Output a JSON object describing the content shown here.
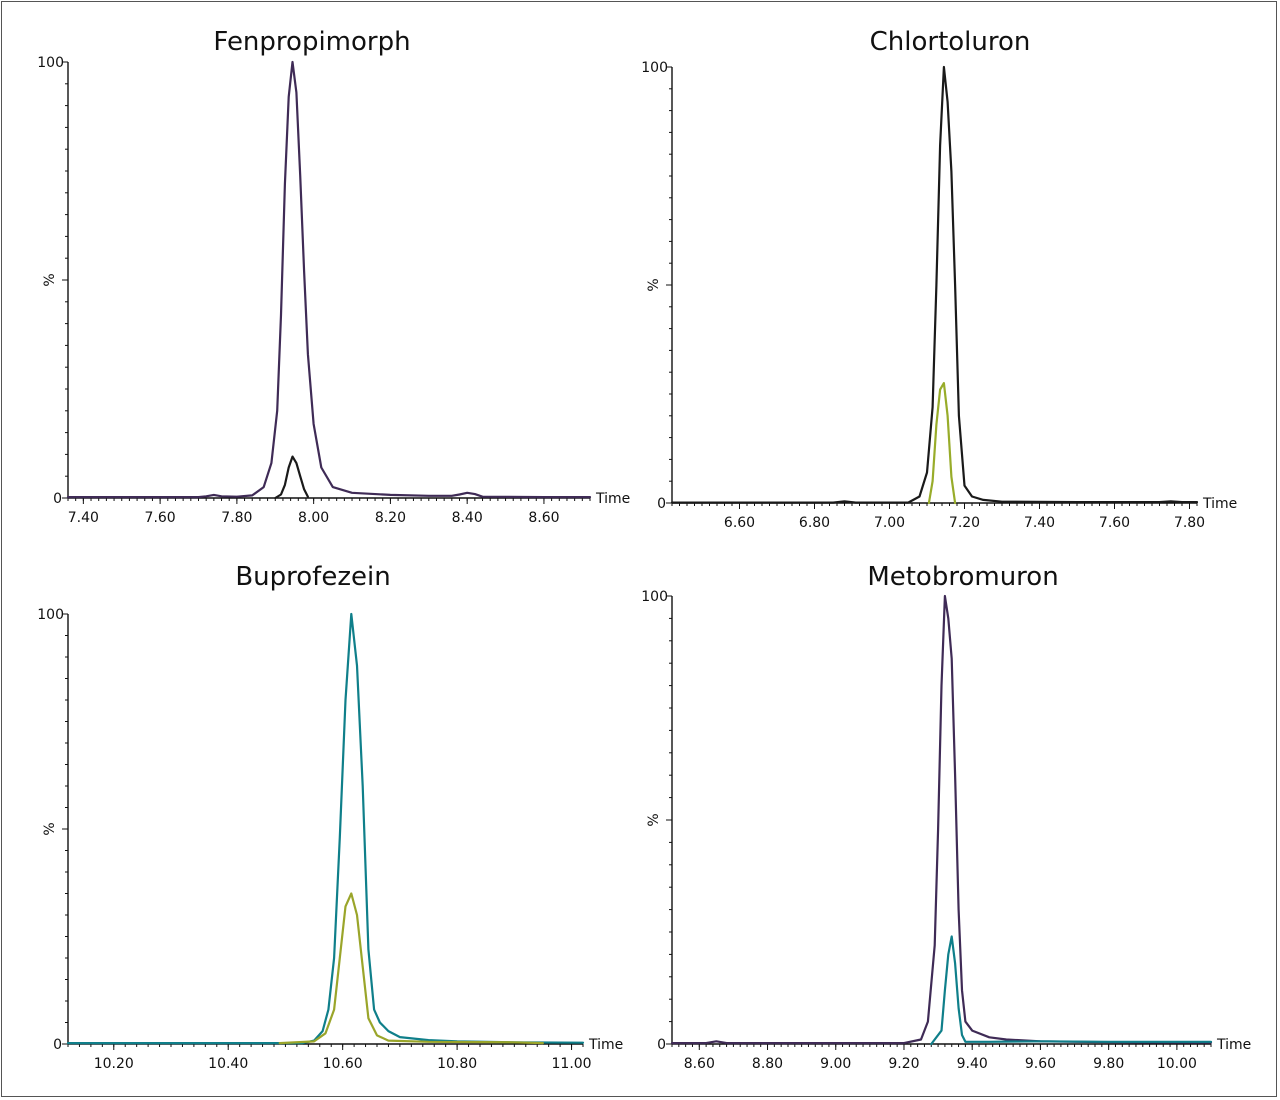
{
  "chart_data": [
    {
      "type": "line",
      "title": "Fenpropimorph",
      "ylabel": "%",
      "xlabel": "Time",
      "xlim": [
        7.36,
        8.72
      ],
      "ylim": [
        0,
        100
      ],
      "xticks": [
        "7.40",
        "7.60",
        "7.80",
        "8.00",
        "8.20",
        "8.40",
        "8.60"
      ],
      "yticks": [
        "0",
        "100"
      ],
      "series": [
        {
          "color": "#3f2b56",
          "x": [
            7.36,
            7.7,
            7.72,
            7.74,
            7.76,
            7.8,
            7.84,
            7.87,
            7.89,
            7.905,
            7.915,
            7.925,
            7.935,
            7.945,
            7.955,
            7.965,
            7.975,
            7.985,
            8.0,
            8.02,
            8.05,
            8.1,
            8.2,
            8.3,
            8.36,
            8.38,
            8.4,
            8.42,
            8.44,
            8.6,
            8.72
          ],
          "y": [
            0.2,
            0.2,
            0.4,
            0.7,
            0.4,
            0.3,
            0.6,
            2.5,
            8,
            20,
            42,
            72,
            92,
            100,
            93,
            74,
            52,
            33,
            17,
            7,
            2.5,
            1.2,
            0.7,
            0.5,
            0.5,
            0.8,
            1.2,
            0.9,
            0.3,
            0.2,
            0.2
          ]
        },
        {
          "color": "#1a1a1a",
          "x": [
            7.9,
            7.915,
            7.925,
            7.935,
            7.945,
            7.955,
            7.965,
            7.975,
            7.985
          ],
          "y": [
            0,
            0.8,
            3,
            7,
            9.5,
            8,
            5,
            2,
            0.3
          ]
        }
      ]
    },
    {
      "type": "line",
      "title": "Chlortoluron",
      "ylabel": "%",
      "xlabel": "Time",
      "xlim": [
        6.42,
        7.82
      ],
      "ylim": [
        0,
        100
      ],
      "xticks": [
        "6.60",
        "6.80",
        "7.00",
        "7.20",
        "7.40",
        "7.60",
        "7.80"
      ],
      "yticks": [
        "0",
        "100"
      ],
      "series": [
        {
          "color": "#1a1a1a",
          "x": [
            6.42,
            6.85,
            6.88,
            6.91,
            7.05,
            7.08,
            7.1,
            7.115,
            7.125,
            7.135,
            7.145,
            7.155,
            7.165,
            7.175,
            7.185,
            7.2,
            7.22,
            7.25,
            7.3,
            7.5,
            7.72,
            7.75,
            7.78,
            7.82
          ],
          "y": [
            0.1,
            0.1,
            0.4,
            0.1,
            0.1,
            1.5,
            7,
            22,
            50,
            82,
            100,
            92,
            76,
            50,
            20,
            4,
            1.5,
            0.7,
            0.3,
            0.2,
            0.2,
            0.4,
            0.2,
            0.2
          ]
        },
        {
          "color": "#98ac2a",
          "x": [
            7.105,
            7.115,
            7.125,
            7.135,
            7.145,
            7.155,
            7.165,
            7.175
          ],
          "y": [
            0,
            5,
            18,
            26,
            27.5,
            20,
            6,
            0
          ]
        }
      ]
    },
    {
      "type": "line",
      "title": "Buprofezein",
      "ylabel": "%",
      "xlabel": "Time",
      "xlim": [
        10.12,
        11.02
      ],
      "ylim": [
        0,
        100
      ],
      "xticks": [
        "10.20",
        "10.40",
        "10.60",
        "10.80",
        "11.00"
      ],
      "yticks": [
        "0",
        "100"
      ],
      "series": [
        {
          "color": "#0f7f8a",
          "x": [
            10.12,
            10.53,
            10.55,
            10.565,
            10.575,
            10.585,
            10.595,
            10.605,
            10.615,
            10.625,
            10.635,
            10.645,
            10.655,
            10.665,
            10.68,
            10.7,
            10.75,
            10.8,
            10.9,
            11.02
          ],
          "y": [
            0.2,
            0.2,
            0.8,
            3,
            8,
            20,
            48,
            80,
            100,
            88,
            60,
            22,
            8,
            5,
            3,
            1.6,
            0.9,
            0.6,
            0.4,
            0.3
          ]
        },
        {
          "color": "#9aa52a",
          "x": [
            10.49,
            10.55,
            10.57,
            10.585,
            10.595,
            10.605,
            10.615,
            10.625,
            10.635,
            10.645,
            10.66,
            10.68,
            10.75,
            10.9,
            10.95
          ],
          "y": [
            0.2,
            0.6,
            2.5,
            8,
            20,
            32,
            35,
            30,
            18,
            6,
            2,
            0.8,
            0.5,
            0.4,
            0.2
          ]
        }
      ]
    },
    {
      "type": "line",
      "title": "Metobromuron",
      "ylabel": "%",
      "xlabel": "Time",
      "xlim": [
        8.52,
        10.1
      ],
      "ylim": [
        0,
        100
      ],
      "xticks": [
        "8.60",
        "8.80",
        "9.00",
        "9.20",
        "9.40",
        "9.60",
        "9.80",
        "10.00"
      ],
      "yticks": [
        "0",
        "100"
      ],
      "series": [
        {
          "color": "#3f2b56",
          "x": [
            8.52,
            8.62,
            8.65,
            8.68,
            9.2,
            9.25,
            9.27,
            9.29,
            9.3,
            9.31,
            9.32,
            9.33,
            9.34,
            9.35,
            9.36,
            9.37,
            9.38,
            9.4,
            9.45,
            9.5,
            9.6,
            9.8,
            10.1
          ],
          "y": [
            0.2,
            0.2,
            0.6,
            0.2,
            0.2,
            1,
            5,
            22,
            48,
            80,
            100,
            95,
            86,
            60,
            30,
            12,
            5,
            3,
            1.5,
            1,
            0.6,
            0.4,
            0.3
          ]
        },
        {
          "color": "#0f7f8a",
          "x": [
            9.28,
            9.31,
            9.32,
            9.33,
            9.34,
            9.35,
            9.36,
            9.37,
            9.38,
            9.45,
            9.6,
            9.8,
            10.0,
            10.1
          ],
          "y": [
            0,
            3,
            12,
            20,
            24,
            18,
            8,
            2,
            0.5,
            0.5,
            0.6,
            0.5,
            0.5,
            0.5
          ]
        }
      ]
    }
  ]
}
